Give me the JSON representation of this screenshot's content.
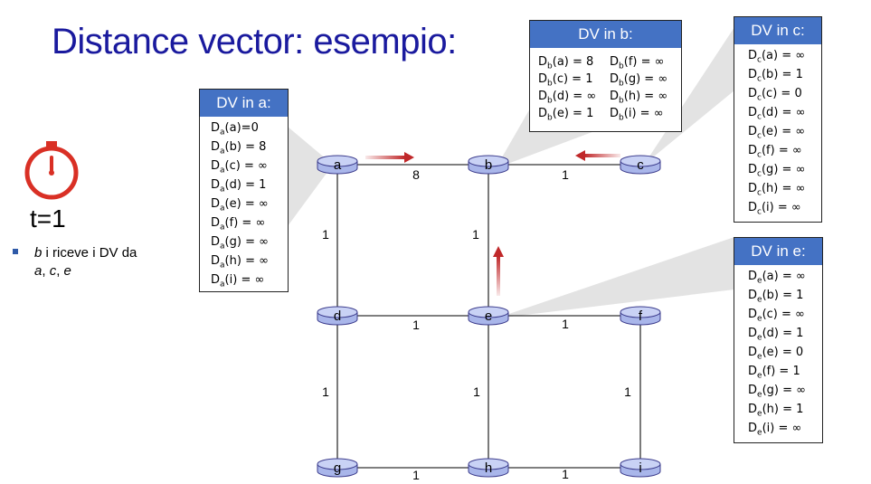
{
  "slide_title": "Distance vector: esempio:",
  "time_label": "t=1",
  "bullet": {
    "b": "b",
    "text1": " i riceve i DV da ",
    "a": "a",
    "sep1": ", ",
    "c": "c",
    "sep2": ", ",
    "e": "e"
  },
  "dv_a": {
    "title": "DV in a:",
    "rows": [
      {
        "sub": "a",
        "dest": "a",
        "val": "0",
        "sep": "="
      },
      {
        "sub": "a",
        "dest": "b",
        "val": "8",
        "sep": " = "
      },
      {
        "sub": "a",
        "dest": "c",
        "val": "∞",
        "sep": " = "
      },
      {
        "sub": "a",
        "dest": "d",
        "val": "1",
        "sep": " = "
      },
      {
        "sub": "a",
        "dest": "e",
        "val": "∞",
        "sep": " = "
      },
      {
        "sub": "a",
        "dest": "f",
        "val": "∞",
        "sep": " = "
      },
      {
        "sub": "a",
        "dest": "g",
        "val": "∞",
        "sep": " = "
      },
      {
        "sub": "a",
        "dest": "h",
        "val": "∞",
        "sep": " = "
      },
      {
        "sub": "a",
        "dest": "i",
        "val": "∞",
        "sep": " = "
      }
    ]
  },
  "dv_b": {
    "title": "DV in b:",
    "col1": [
      {
        "sub": "b",
        "dest": "a",
        "val": "8",
        "sep": " = "
      },
      {
        "sub": "b",
        "dest": "c",
        "val": "1",
        "sep": " = "
      },
      {
        "sub": "b",
        "dest": "d",
        "val": "∞",
        "sep": " = "
      },
      {
        "sub": "b",
        "dest": "e",
        "val": "1",
        "sep": " = "
      }
    ],
    "col2": [
      {
        "sub": "b",
        "dest": "f",
        "val": "∞",
        "sep": " = "
      },
      {
        "sub": "b",
        "dest": "g",
        "val": "∞",
        "sep": " = "
      },
      {
        "sub": "b",
        "dest": "h",
        "val": "∞",
        "sep": " = "
      },
      {
        "sub": "b",
        "dest": "i",
        "val": "∞",
        "sep": " = "
      }
    ]
  },
  "dv_c": {
    "title": "DV in c:",
    "rows": [
      {
        "sub": "c",
        "dest": "a",
        "val": "∞",
        "sep": " = "
      },
      {
        "sub": "c",
        "dest": "b",
        "val": "1",
        "sep": " = "
      },
      {
        "sub": "c",
        "dest": "c",
        "val": "0",
        "sep": " = "
      },
      {
        "sub": "c",
        "dest": "d",
        "val": "∞",
        "sep": " = "
      },
      {
        "sub": "c",
        "dest": "e",
        "val": "∞",
        "sep": " = "
      },
      {
        "sub": "c",
        "dest": "f",
        "val": "∞",
        "sep": " = "
      },
      {
        "sub": "c",
        "dest": "g",
        "val": "∞",
        "sep": " = "
      },
      {
        "sub": "c",
        "dest": "h",
        "val": "∞",
        "sep": " = "
      },
      {
        "sub": "c",
        "dest": "i",
        "val": "∞",
        "sep": " = "
      }
    ]
  },
  "dv_e": {
    "title": "DV in e:",
    "rows": [
      {
        "sub": "e",
        "dest": "a",
        "val": "∞",
        "sep": " = "
      },
      {
        "sub": "e",
        "dest": "b",
        "val": "1",
        "sep": " = "
      },
      {
        "sub": "e",
        "dest": "c",
        "val": "∞",
        "sep": " = "
      },
      {
        "sub": "e",
        "dest": "d",
        "val": "1",
        "sep": " = "
      },
      {
        "sub": "e",
        "dest": "e",
        "val": "0",
        "sep": " = "
      },
      {
        "sub": "e",
        "dest": "f",
        "val": "1",
        "sep": " = "
      },
      {
        "sub": "e",
        "dest": "g",
        "val": "∞",
        "sep": " = "
      },
      {
        "sub": "e",
        "dest": "h",
        "val": "1",
        "sep": " = "
      },
      {
        "sub": "e",
        "dest": "i",
        "val": "∞",
        "sep": " = "
      }
    ]
  },
  "nodes": [
    {
      "id": "a"
    },
    {
      "id": "b"
    },
    {
      "id": "c"
    },
    {
      "id": "d"
    },
    {
      "id": "e"
    },
    {
      "id": "f"
    },
    {
      "id": "g"
    },
    {
      "id": "h"
    },
    {
      "id": "i"
    }
  ],
  "links": [
    {
      "from": "a",
      "to": "b",
      "cost": "8"
    },
    {
      "from": "b",
      "to": "c",
      "cost": "1"
    },
    {
      "from": "a",
      "to": "d",
      "cost": "1"
    },
    {
      "from": "b",
      "to": "e",
      "cost": "1"
    },
    {
      "from": "d",
      "to": "e",
      "cost": "1"
    },
    {
      "from": "e",
      "to": "f",
      "cost": "1"
    },
    {
      "from": "d",
      "to": "g",
      "cost": "1"
    },
    {
      "from": "e",
      "to": "h",
      "cost": "1"
    },
    {
      "from": "f",
      "to": "i",
      "cost": "1"
    },
    {
      "from": "g",
      "to": "h",
      "cost": "1"
    },
    {
      "from": "h",
      "to": "i",
      "cost": "1"
    }
  ],
  "colors": {
    "title": "#1a1a9e",
    "header_fill": "#4472c4",
    "router_fill": "#bcc7f0",
    "arrow": "#c0282a",
    "clock": "#d93025"
  },
  "icons": {
    "clock": "stopwatch-icon",
    "bullet": "square-bullet-icon",
    "router": "router-icon",
    "arrow": "message-arrow-icon"
  }
}
